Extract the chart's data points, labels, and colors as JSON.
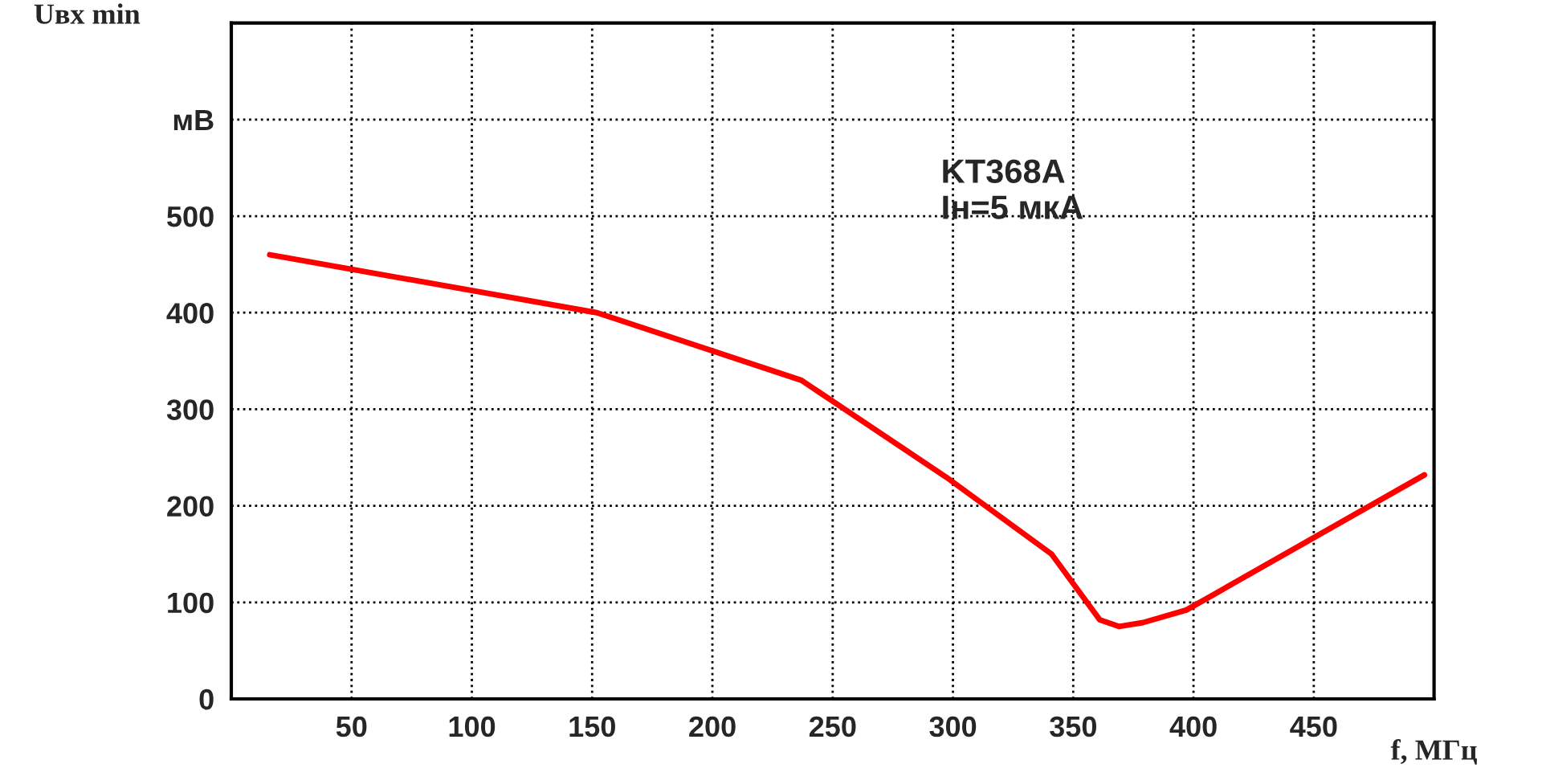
{
  "chart_data": {
    "type": "line",
    "ylabel": "Uвх min",
    "xlabel": "f, МГц",
    "annotations": [
      "KT368A\nIн=5 мкА"
    ],
    "x": [
      16,
      152,
      237,
      297,
      341,
      361,
      369,
      379,
      397,
      496
    ],
    "series": [
      {
        "color": "#ff0000",
        "values": [
          460,
          400,
          330,
          230,
          150,
          82,
          75,
          79,
          92,
          232
        ]
      }
    ],
    "xlim": [
      0,
      500
    ],
    "xticks": [
      50,
      100,
      150,
      200,
      250,
      300,
      350,
      400,
      450
    ],
    "ylim": [
      0,
      700
    ],
    "yticks": [
      0,
      100,
      200,
      300,
      400,
      500,
      {
        "value": 600,
        "label": "мВ"
      }
    ],
    "grid": true,
    "line_style": "solid",
    "marker": "none"
  }
}
